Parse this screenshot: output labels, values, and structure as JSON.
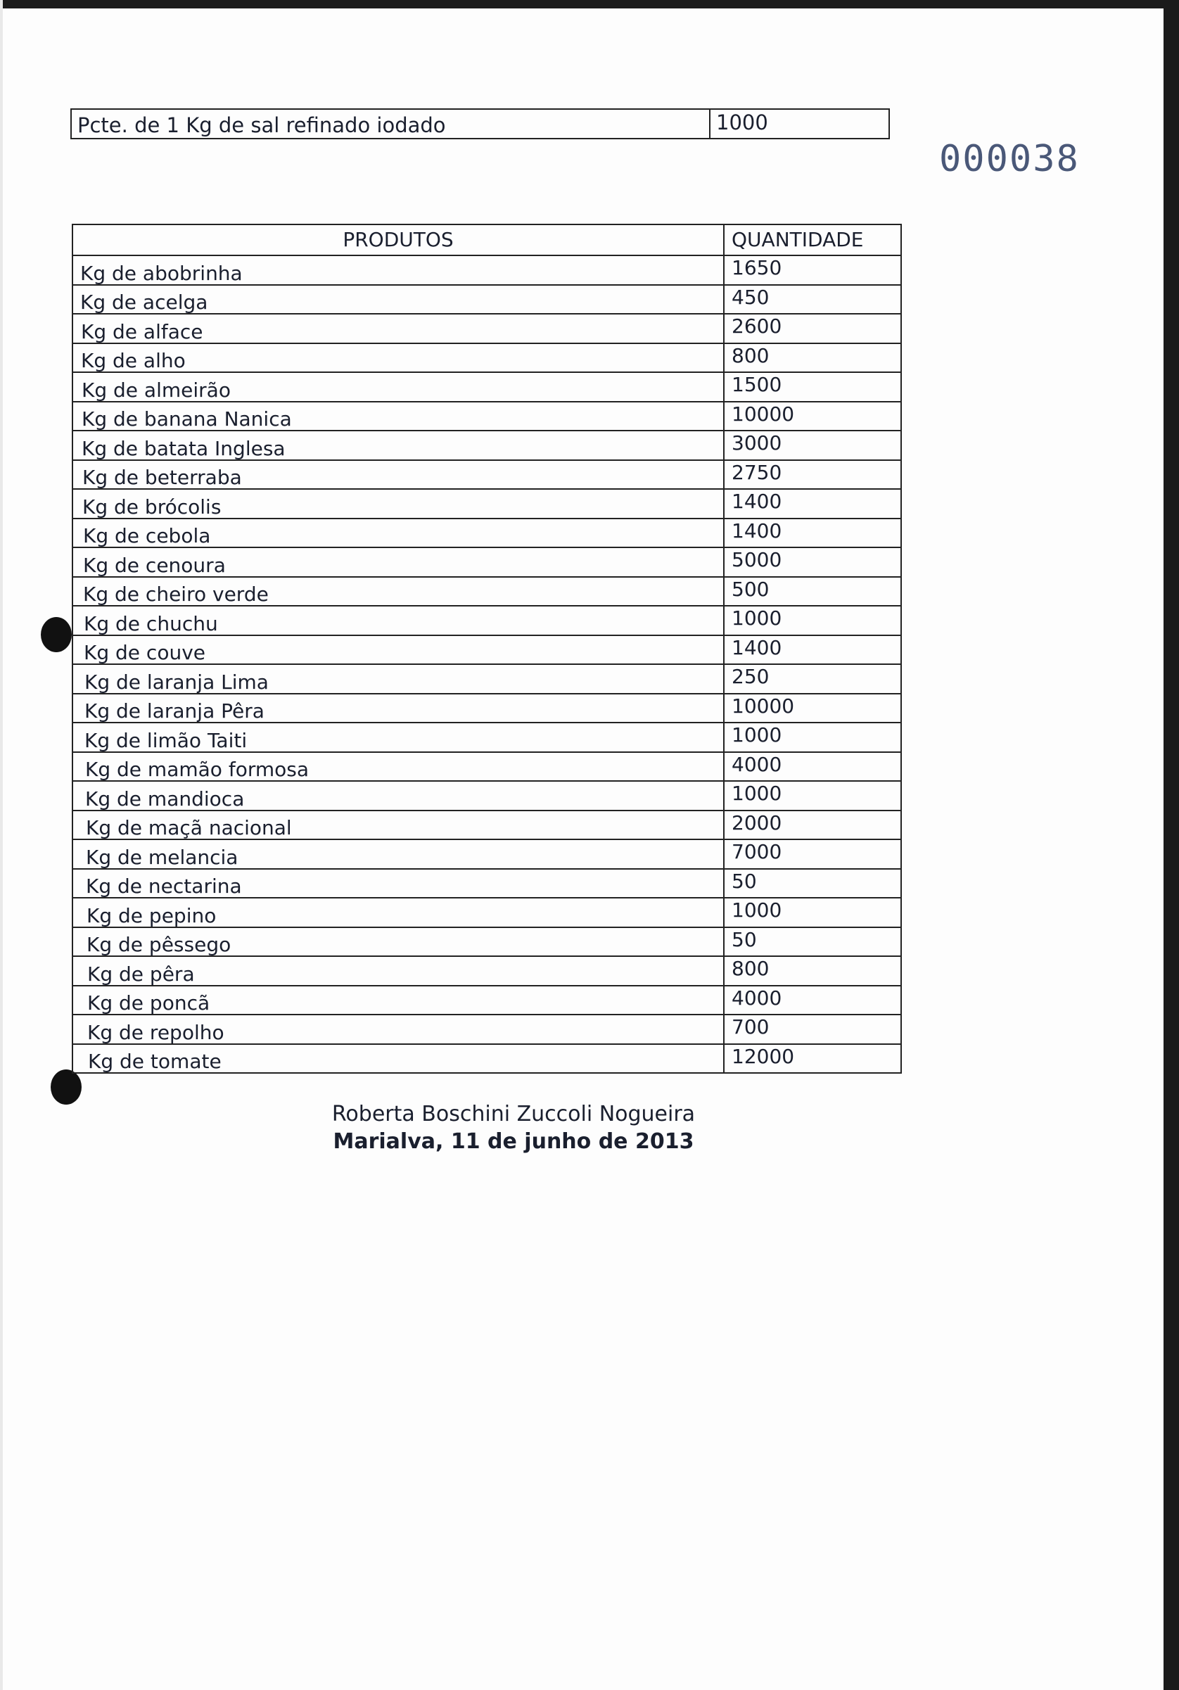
{
  "top_item": {
    "product": "Pcte. de 1 Kg de sal refinado iodado",
    "quantity": "1000"
  },
  "stamp_number": "000038",
  "table": {
    "headers": [
      "PRODUTOS",
      "QUANTIDADE"
    ],
    "rows": [
      [
        "Kg de abobrinha",
        "1650"
      ],
      [
        "Kg de acelga",
        "450"
      ],
      [
        "Kg de alface",
        "2600"
      ],
      [
        "Kg de alho",
        "800"
      ],
      [
        "Kg de almeirão",
        "1500"
      ],
      [
        "Kg de banana Nanica",
        "10000"
      ],
      [
        "Kg de batata Inglesa",
        "3000"
      ],
      [
        "Kg de beterraba",
        "2750"
      ],
      [
        "Kg de brócolis",
        "1400"
      ],
      [
        "Kg de cebola",
        "1400"
      ],
      [
        "Kg de cenoura",
        "5000"
      ],
      [
        "Kg de cheiro verde",
        "500"
      ],
      [
        "Kg de chuchu",
        "1000"
      ],
      [
        "Kg de couve",
        "1400"
      ],
      [
        "Kg de laranja Lima",
        "250"
      ],
      [
        "Kg de laranja Pêra",
        "10000"
      ],
      [
        "Kg de limão Taiti",
        "1000"
      ],
      [
        "Kg de mamão formosa",
        "4000"
      ],
      [
        "Kg de mandioca",
        "1000"
      ],
      [
        "Kg de maçã nacional",
        "2000"
      ],
      [
        "Kg de melancia",
        "7000"
      ],
      [
        "Kg de nectarina",
        "50"
      ],
      [
        "Kg de pepino",
        "1000"
      ],
      [
        "Kg de pêssego",
        "50"
      ],
      [
        "Kg de pêra",
        "800"
      ],
      [
        "Kg de poncã",
        "4000"
      ],
      [
        "Kg de repolho",
        "700"
      ],
      [
        "Kg de tomate",
        "12000"
      ]
    ]
  },
  "signature": {
    "name": "Roberta Boschini Zuccoli Nogueira",
    "place_date": "Marialva, 11 de junho de 2013"
  }
}
